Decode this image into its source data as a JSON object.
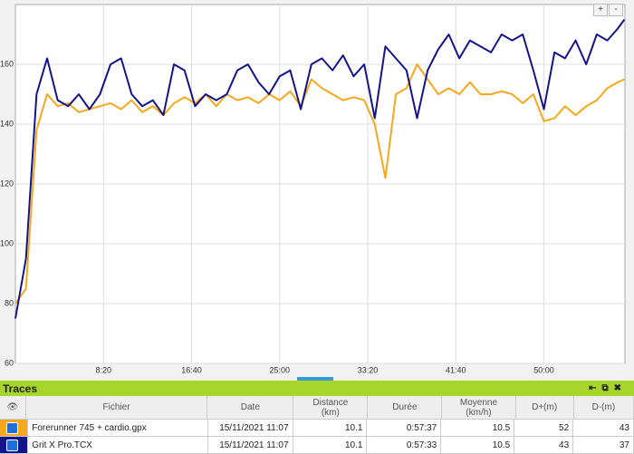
{
  "chart_data": {
    "type": "line",
    "x": [
      0,
      60,
      120,
      180,
      240,
      300,
      360,
      420,
      480,
      540,
      600,
      660,
      720,
      780,
      840,
      900,
      960,
      1020,
      1080,
      1140,
      1200,
      1260,
      1320,
      1380,
      1440,
      1500,
      1560,
      1620,
      1680,
      1740,
      1800,
      1860,
      1920,
      1980,
      2040,
      2100,
      2160,
      2220,
      2280,
      2340,
      2400,
      2460,
      2520,
      2580,
      2640,
      2700,
      2760,
      2820,
      2880,
      2940,
      3000,
      3060,
      3120,
      3180,
      3240,
      3300,
      3360,
      3420,
      3457
    ],
    "series": [
      {
        "color": "#f5a81c",
        "values": [
          80,
          85,
          138,
          150,
          146,
          147,
          144,
          145,
          146,
          147,
          145,
          148,
          144,
          146,
          143,
          147,
          149,
          147,
          150,
          146,
          150,
          148,
          149,
          147,
          150,
          148,
          151,
          146,
          155,
          152,
          150,
          148,
          149,
          148,
          140,
          122,
          150,
          152,
          160,
          155,
          150,
          152,
          150,
          154,
          150,
          150,
          151,
          150,
          147,
          150,
          141,
          142,
          146,
          143,
          146,
          148,
          152,
          154,
          155
        ]
      },
      {
        "color": "#14148a",
        "values": [
          75,
          95,
          150,
          162,
          148,
          146,
          150,
          145,
          150,
          160,
          162,
          150,
          146,
          148,
          143,
          160,
          158,
          146,
          150,
          148,
          150,
          158,
          160,
          154,
          150,
          156,
          158,
          145,
          160,
          162,
          158,
          163,
          156,
          160,
          142,
          166,
          162,
          158,
          142,
          158,
          165,
          170,
          162,
          168,
          166,
          164,
          170,
          168,
          170,
          158,
          145,
          164,
          162,
          168,
          160,
          170,
          168,
          172,
          175
        ]
      }
    ],
    "xlim": [
      0,
      3460
    ],
    "ylim": [
      60,
      180
    ],
    "xticks": [
      {
        "value": 500,
        "label": "8:20"
      },
      {
        "value": 1000,
        "label": "16:40"
      },
      {
        "value": 1500,
        "label": "25:00"
      },
      {
        "value": 2000,
        "label": "33:20"
      },
      {
        "value": 2500,
        "label": "41:40"
      },
      {
        "value": 3000,
        "label": "50:00"
      }
    ],
    "yticks": [
      60,
      80,
      100,
      120,
      140,
      160
    ],
    "grid": true
  },
  "zoom": {
    "in": "+",
    "out": "-"
  },
  "table": {
    "title": "Traces",
    "headers": [
      "Fichier",
      "Date",
      "Distance\n(km)",
      "Durée",
      "Moyenne\n(km/h)",
      "D+(m)",
      "D-(m)"
    ],
    "rows": [
      {
        "color": "#f5a81c",
        "cells": [
          "Forerunner 745 + cardio.gpx",
          "15/11/2021 11:07",
          "10.1",
          "0:57:37",
          "10.5",
          "52",
          "43"
        ]
      },
      {
        "color": "#14148a",
        "cells": [
          "Grit X Pro.TCX",
          "15/11/2021 11:07",
          "10.1",
          "0:57:33",
          "10.5",
          "43",
          "37"
        ]
      }
    ]
  }
}
